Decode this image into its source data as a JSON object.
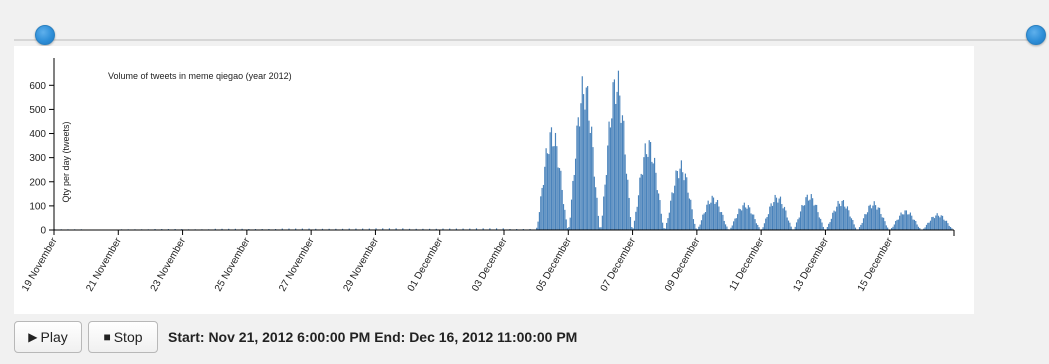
{
  "slider": {
    "range_start": 0,
    "range_end": 1
  },
  "chart_data": {
    "type": "bar",
    "title": "Volume of tweets in meme qiegao (year 2012)",
    "xlabel": "",
    "ylabel": "Qty per day (tweets)",
    "ylim": [
      0,
      680
    ],
    "yticks": [
      0,
      100,
      200,
      300,
      400,
      500,
      600
    ],
    "xlim": [
      "2012-11-19",
      "2012-12-17"
    ],
    "xtick_labels": [
      "19 November",
      "21 November",
      "23 November",
      "25 November",
      "27 November",
      "29 November",
      "01 December",
      "03 December",
      "05 December",
      "07 December",
      "09 December",
      "11 December",
      "13 December",
      "15 December"
    ],
    "bar_color": "#4a83bb",
    "grid": false,
    "daily_peaks": [
      {
        "date": "2012-11-19",
        "peak": 3
      },
      {
        "date": "2012-11-20",
        "peak": 2
      },
      {
        "date": "2012-11-21",
        "peak": 3
      },
      {
        "date": "2012-11-22",
        "peak": 4
      },
      {
        "date": "2012-11-23",
        "peak": 3
      },
      {
        "date": "2012-11-24",
        "peak": 5
      },
      {
        "date": "2012-11-25",
        "peak": 4
      },
      {
        "date": "2012-11-26",
        "peak": 6
      },
      {
        "date": "2012-11-27",
        "peak": 5
      },
      {
        "date": "2012-11-28",
        "peak": 6
      },
      {
        "date": "2012-11-29",
        "peak": 7
      },
      {
        "date": "2012-11-30",
        "peak": 5
      },
      {
        "date": "2012-12-01",
        "peak": 6
      },
      {
        "date": "2012-12-02",
        "peak": 7
      },
      {
        "date": "2012-12-03",
        "peak": 4
      },
      {
        "date": "2012-12-04",
        "peak": 440
      },
      {
        "date": "2012-12-05",
        "peak": 655
      },
      {
        "date": "2012-12-06",
        "peak": 680
      },
      {
        "date": "2012-12-07",
        "peak": 390
      },
      {
        "date": "2012-12-08",
        "peak": 290
      },
      {
        "date": "2012-12-09",
        "peak": 145
      },
      {
        "date": "2012-12-10",
        "peak": 115
      },
      {
        "date": "2012-12-11",
        "peak": 150
      },
      {
        "date": "2012-12-12",
        "peak": 155
      },
      {
        "date": "2012-12-13",
        "peak": 130
      },
      {
        "date": "2012-12-14",
        "peak": 120
      },
      {
        "date": "2012-12-15",
        "peak": 85
      },
      {
        "date": "2012-12-16",
        "peak": 70
      },
      {
        "date": "2012-12-17",
        "peak": 50
      }
    ]
  },
  "controls": {
    "play_icon": "play-icon",
    "play_label": "Play",
    "stop_icon": "stop-icon",
    "stop_label": "Stop",
    "status_text": "Start: Nov 21, 2012 6:00:00 PM End: Dec 16, 2012 11:00:00 PM"
  }
}
